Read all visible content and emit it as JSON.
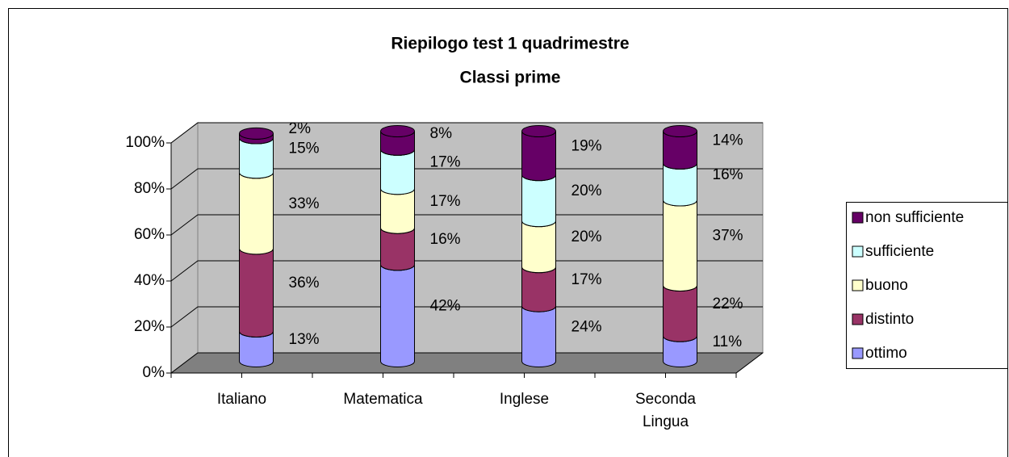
{
  "chart_data": {
    "type": "bar3d_stacked",
    "title": "Riepilogo test 1 quadrimestre",
    "subtitle": "Classi prime",
    "categories": [
      "Italiano",
      "Matematica",
      "Inglese",
      "Seconda Lingua"
    ],
    "series": [
      {
        "name": "ottimo",
        "color": "#9999ff",
        "values": [
          13,
          42,
          24,
          11
        ],
        "value_labels": [
          "13%",
          "42%",
          "24%",
          "11%"
        ]
      },
      {
        "name": "distinto",
        "color": "#993366",
        "values": [
          36,
          16,
          17,
          22
        ],
        "value_labels": [
          "36%",
          "16%",
          "17%",
          "22%"
        ]
      },
      {
        "name": "buono",
        "color": "#ffffcc",
        "values": [
          33,
          17,
          20,
          37
        ],
        "value_labels": [
          "33%",
          "17%",
          "20%",
          "37%"
        ]
      },
      {
        "name": "sufficiente",
        "color": "#ccffff",
        "values": [
          15,
          17,
          20,
          16
        ],
        "value_labels": [
          "15%",
          "17%",
          "20%",
          "16%"
        ]
      },
      {
        "name": "non sufficiente",
        "color": "#660066",
        "values": [
          2,
          8,
          19,
          14
        ],
        "value_labels": [
          "2%",
          "8%",
          "19%",
          "14%"
        ]
      }
    ],
    "ylim": [
      0,
      100
    ],
    "yticks": [
      {
        "value": 0,
        "label": "0%"
      },
      {
        "value": 20,
        "label": "20%"
      },
      {
        "value": 40,
        "label": "40%"
      },
      {
        "value": 60,
        "label": "60%"
      },
      {
        "value": 80,
        "label": "80%"
      },
      {
        "value": 100,
        "label": "100%"
      }
    ],
    "grid": true,
    "legend": "right"
  }
}
